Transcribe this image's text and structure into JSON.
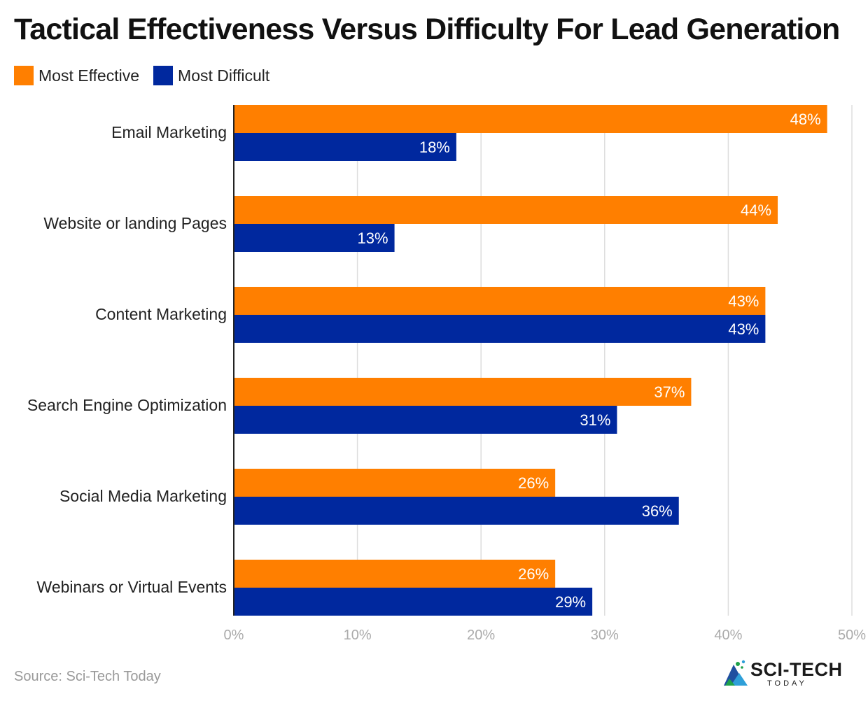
{
  "title": "Tactical Effectiveness Versus Difficulty For Lead Generation",
  "source": "Source: Sci-Tech Today",
  "logo": {
    "main": "SCI-TECH",
    "sub": "TODAY"
  },
  "colors": {
    "effective": "#ff7f00",
    "difficult": "#00289e",
    "grid": "#dddddd",
    "axis": "#222222",
    "tick": "#aaaaaa",
    "label": "#222222"
  },
  "chart_data": {
    "type": "bar",
    "orientation": "horizontal",
    "title": "Tactical Effectiveness Versus Difficulty For Lead Generation",
    "categories": [
      "Email Marketing",
      "Website or landing Pages",
      "Content Marketing",
      "Search Engine Optimization",
      "Social Media Marketing",
      "Webinars or Virtual Events"
    ],
    "series": [
      {
        "name": "Most Effective",
        "values": [
          48,
          44,
          43,
          37,
          26,
          26
        ],
        "labels": [
          "48%",
          "44%",
          "43%",
          "37%",
          "26%",
          "26%"
        ]
      },
      {
        "name": "Most Difficult",
        "values": [
          18,
          13,
          43,
          31,
          36,
          29
        ],
        "labels": [
          "18%",
          "13%",
          "43%",
          "31%",
          "36%",
          "29%"
        ]
      }
    ],
    "xlim": [
      0,
      50
    ],
    "xticks": [
      0,
      10,
      20,
      30,
      40,
      50
    ],
    "xtick_labels": [
      "0%",
      "10%",
      "20%",
      "30%",
      "40%",
      "50%"
    ],
    "legend": "top-left",
    "grid": true
  }
}
